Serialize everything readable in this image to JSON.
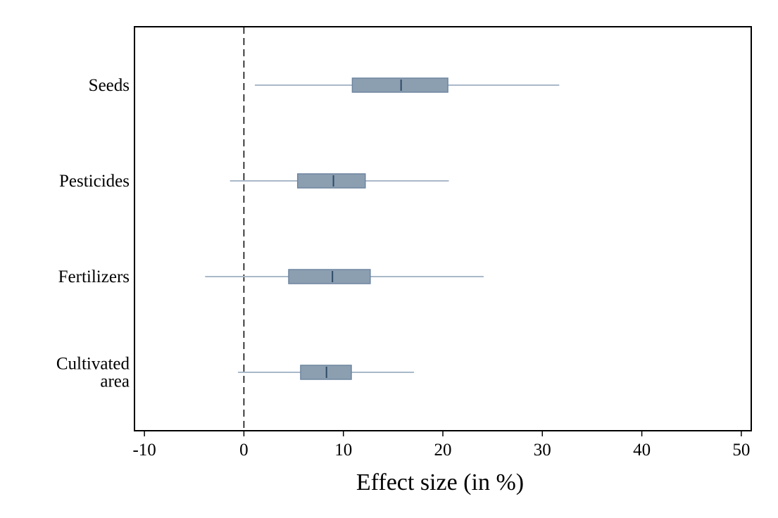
{
  "chart_data": {
    "type": "box",
    "orientation": "horizontal",
    "categories": [
      "Seeds",
      "Pesticides",
      "Fertilizers",
      "Cultivated area"
    ],
    "category_label_lines": [
      [
        "Seeds"
      ],
      [
        "Pesticides"
      ],
      [
        "Fertilizers"
      ],
      [
        "Cultivated",
        "area"
      ]
    ],
    "boxes": [
      {
        "category": "Seeds",
        "whisker_low": 1.1,
        "q1": 10.9,
        "median": 15.8,
        "q3": 20.5,
        "whisker_high": 31.7
      },
      {
        "category": "Pesticides",
        "whisker_low": -1.4,
        "q1": 5.4,
        "median": 9.0,
        "q3": 12.2,
        "whisker_high": 20.6
      },
      {
        "category": "Fertilizers",
        "whisker_low": -3.9,
        "q1": 4.5,
        "median": 8.9,
        "q3": 12.7,
        "whisker_high": 24.1
      },
      {
        "category": "Cultivated area",
        "whisker_low": -0.6,
        "q1": 5.7,
        "median": 8.3,
        "q3": 10.8,
        "whisker_high": 17.1
      }
    ],
    "xlabel": "Effect size (in %)",
    "ylabel": "",
    "xlim": [
      -11,
      51
    ],
    "xticks": [
      -10,
      0,
      10,
      20,
      30,
      40,
      50
    ],
    "reference_line": {
      "x": 0,
      "style": "dashed"
    },
    "grid": false,
    "legend": "none",
    "colors": {
      "box_fill": "#8c9fb1",
      "box_edge": "#6e86a0",
      "whisker": "#a9b9c9",
      "median": "#2e4a66",
      "axis": "#000000"
    }
  }
}
